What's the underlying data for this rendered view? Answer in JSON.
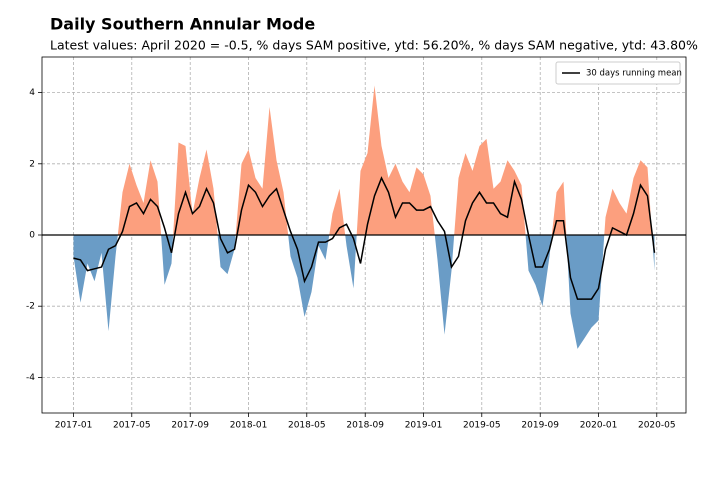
{
  "chart_data": {
    "type": "area-line",
    "title": "Daily Southern Annular Mode",
    "subtitle": "Latest values: April 2020 = -0.5, % days SAM positive, ytd: 56.20%, % days SAM negative, ytd: 43.80%",
    "x": [
      2017.0,
      2017.04,
      2017.08,
      2017.12,
      2017.16,
      2017.2,
      2017.24,
      2017.28,
      2017.32,
      2017.36,
      2017.4,
      2017.44,
      2017.48,
      2017.52,
      2017.56,
      2017.6,
      2017.64,
      2017.68,
      2017.72,
      2017.76,
      2017.8,
      2017.84,
      2017.88,
      2017.92,
      2017.96,
      2018.0,
      2018.04,
      2018.08,
      2018.12,
      2018.16,
      2018.2,
      2018.24,
      2018.28,
      2018.32,
      2018.36,
      2018.4,
      2018.44,
      2018.48,
      2018.52,
      2018.56,
      2018.6,
      2018.64,
      2018.68,
      2018.72,
      2018.76,
      2018.8,
      2018.84,
      2018.88,
      2018.92,
      2018.96,
      2019.0,
      2019.04,
      2019.08,
      2019.12,
      2019.16,
      2019.2,
      2019.24,
      2019.28,
      2019.32,
      2019.36,
      2019.4,
      2019.44,
      2019.48,
      2019.52,
      2019.56,
      2019.6,
      2019.64,
      2019.68,
      2019.72,
      2019.76,
      2019.8,
      2019.84,
      2019.88,
      2019.92,
      2019.96,
      2020.0,
      2020.04,
      2020.08,
      2020.12,
      2020.16,
      2020.2,
      2020.24,
      2020.28,
      2020.32
    ],
    "values": [
      -0.6,
      -1.9,
      -0.8,
      -1.3,
      -0.5,
      -2.7,
      -0.6,
      1.2,
      2.0,
      1.4,
      0.9,
      2.1,
      1.5,
      -1.4,
      -0.8,
      2.6,
      2.5,
      0.6,
      1.6,
      2.4,
      1.3,
      -0.9,
      -1.1,
      -0.4,
      2.0,
      2.4,
      1.6,
      1.3,
      3.6,
      2.1,
      1.2,
      -0.6,
      -1.2,
      -2.3,
      -1.6,
      -0.3,
      -0.7,
      0.6,
      1.3,
      -0.3,
      -1.5,
      1.8,
      2.3,
      4.2,
      2.5,
      1.6,
      2.0,
      1.5,
      1.2,
      1.9,
      1.7,
      1.1,
      -0.7,
      -2.8,
      -1.0,
      1.6,
      2.3,
      1.8,
      2.5,
      2.7,
      1.3,
      1.5,
      2.1,
      1.8,
      1.4,
      -1.0,
      -1.4,
      -2.0,
      -0.6,
      1.2,
      1.5,
      -2.2,
      -3.2,
      -2.9,
      -2.6,
      -2.4,
      0.5,
      1.3,
      0.9,
      0.6,
      1.6,
      2.1,
      1.9,
      -1.0
    ],
    "positive_color": "#fc9f7e",
    "negative_color": "#6a9cc6",
    "series": [
      {
        "name": "30 days running mean",
        "color": "#000000",
        "values": [
          -0.65,
          -0.7,
          -1.0,
          -0.95,
          -0.9,
          -0.4,
          -0.3,
          0.1,
          0.8,
          0.9,
          0.6,
          1.0,
          0.8,
          0.2,
          -0.5,
          0.6,
          1.2,
          0.6,
          0.8,
          1.3,
          0.9,
          -0.1,
          -0.5,
          -0.4,
          0.7,
          1.4,
          1.2,
          0.8,
          1.1,
          1.3,
          0.7,
          0.1,
          -0.4,
          -1.3,
          -0.9,
          -0.2,
          -0.2,
          -0.1,
          0.2,
          0.3,
          -0.1,
          -0.8,
          0.3,
          1.1,
          1.6,
          1.2,
          0.5,
          0.9,
          0.9,
          0.7,
          0.7,
          0.8,
          0.4,
          0.1,
          -0.9,
          -0.6,
          0.4,
          0.9,
          1.2,
          0.9,
          0.9,
          0.6,
          0.5,
          1.5,
          1.0,
          0.0,
          -0.9,
          -0.9,
          -0.4,
          0.4,
          0.4,
          -1.2,
          -1.8,
          -1.8,
          -1.8,
          -1.5,
          -0.4,
          0.2,
          0.1,
          0.0,
          0.6,
          1.4,
          1.1,
          -0.5
        ]
      }
    ],
    "hline": 0,
    "xlim": [
      2016.82,
      2020.5
    ],
    "ylim": [
      -5,
      5
    ],
    "xticks": [
      {
        "value": 2017,
        "label": "2017-01"
      },
      {
        "value": 2017.333,
        "label": "2017-05"
      },
      {
        "value": 2017.667,
        "label": "2017-09"
      },
      {
        "value": 2018,
        "label": "2018-01"
      },
      {
        "value": 2018.333,
        "label": "2018-05"
      },
      {
        "value": 2018.667,
        "label": "2018-09"
      },
      {
        "value": 2019,
        "label": "2019-01"
      },
      {
        "value": 2019.333,
        "label": "2019-05"
      },
      {
        "value": 2019.667,
        "label": "2019-09"
      },
      {
        "value": 2020,
        "label": "2020-01"
      },
      {
        "value": 2020.333,
        "label": "2020-05"
      }
    ],
    "yticks": [
      -4,
      -2,
      0,
      2,
      4
    ],
    "grid": true,
    "legend": "upper right"
  }
}
